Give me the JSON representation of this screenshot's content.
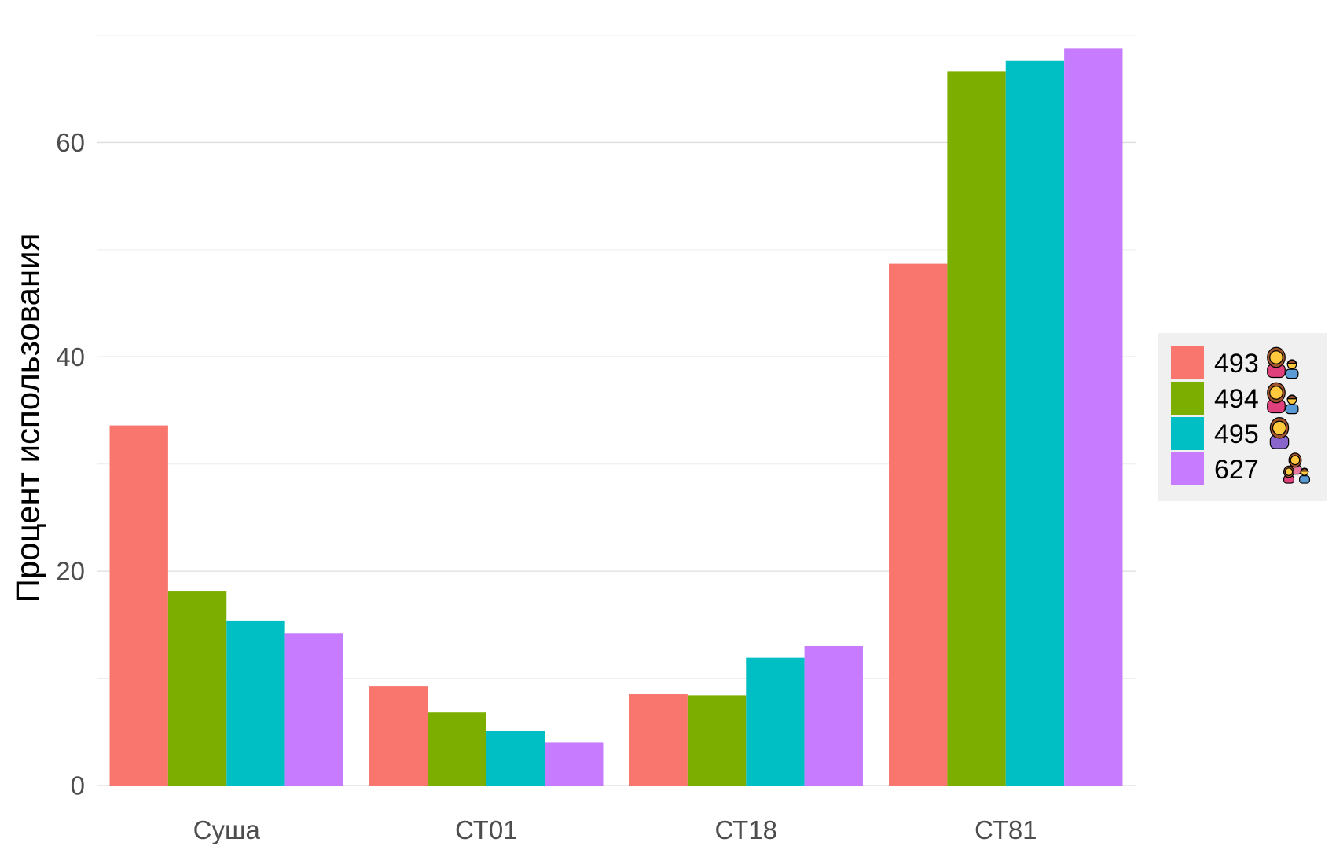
{
  "chart_data": {
    "type": "bar",
    "title": "",
    "xlabel": "",
    "ylabel": "Процент использования",
    "categories": [
      "Суша",
      "СТ01",
      "СТ18",
      "СТ81"
    ],
    "ylim": [
      0,
      70
    ],
    "yticks": [
      0,
      20,
      40,
      60
    ],
    "grid": true,
    "legend_position": "right",
    "series": [
      {
        "name": "493",
        "legend_icon": "woman-man-icon",
        "color": "#F8766D",
        "values": [
          33.6,
          9.3,
          8.5,
          48.7
        ]
      },
      {
        "name": "494",
        "legend_icon": "woman-man-icon",
        "color": "#7CAE00",
        "values": [
          18.1,
          6.8,
          8.4,
          66.6
        ]
      },
      {
        "name": "495",
        "legend_icon": "woman-icon",
        "color": "#00BFC4",
        "values": [
          15.4,
          5.1,
          11.9,
          67.6
        ]
      },
      {
        "name": "627",
        "legend_icon": "family-icon",
        "color": "#C77CFF",
        "values": [
          14.2,
          4.0,
          13.0,
          68.8
        ]
      }
    ]
  }
}
